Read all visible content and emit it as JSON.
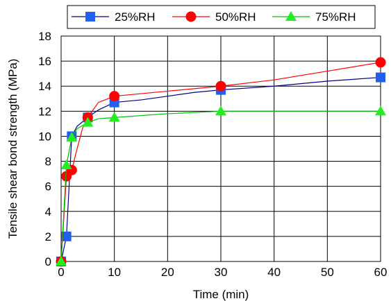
{
  "chart_data": {
    "type": "line",
    "xlabel": "Time (min)",
    "ylabel": "Tensile shear bond strength (MPa)",
    "xlim": [
      0,
      60
    ],
    "ylim": [
      0,
      18
    ],
    "xticks": [
      "0",
      "10",
      "20",
      "30",
      "40",
      "50",
      "60"
    ],
    "yticks": [
      "0",
      "2",
      "4",
      "6",
      "8",
      "10",
      "12",
      "14",
      "16",
      "18"
    ],
    "grid": true,
    "legend_position": "top",
    "series": [
      {
        "name": "25%RH",
        "color": "#00008b",
        "marker_color": "#2060f0",
        "marker": "square",
        "x": [
          0,
          1,
          2,
          5,
          10,
          30,
          60
        ],
        "y": [
          0,
          2.0,
          10.0,
          11.5,
          12.7,
          13.7,
          14.7
        ],
        "curve": [
          [
            0,
            0
          ],
          [
            1,
            2.0
          ],
          [
            2,
            10.0
          ],
          [
            3,
            10.8
          ],
          [
            5,
            11.5
          ],
          [
            7,
            12.1
          ],
          [
            10,
            12.7
          ],
          [
            15,
            12.9
          ],
          [
            20,
            13.2
          ],
          [
            25,
            13.5
          ],
          [
            30,
            13.7
          ],
          [
            40,
            14.0
          ],
          [
            50,
            14.4
          ],
          [
            60,
            14.7
          ]
        ]
      },
      {
        "name": "50%RH",
        "color": "#ff0000",
        "marker_color": "#ff0000",
        "marker": "circle",
        "x": [
          0,
          1,
          2,
          5,
          10,
          30,
          60
        ],
        "y": [
          0,
          6.8,
          7.3,
          11.5,
          13.2,
          14.0,
          15.9
        ],
        "curve": [
          [
            0,
            0
          ],
          [
            1,
            6.8
          ],
          [
            2,
            7.3
          ],
          [
            3,
            9.0
          ],
          [
            4,
            10.6
          ],
          [
            5,
            11.5
          ],
          [
            7,
            12.7
          ],
          [
            10,
            13.2
          ],
          [
            15,
            13.4
          ],
          [
            20,
            13.6
          ],
          [
            30,
            14.0
          ],
          [
            40,
            14.5
          ],
          [
            50,
            15.2
          ],
          [
            60,
            15.9
          ]
        ]
      },
      {
        "name": "75%RH",
        "color": "#00bf00",
        "marker_color": "#22ee22",
        "marker": "triangle",
        "x": [
          0,
          1,
          2,
          5,
          10,
          30,
          60
        ],
        "y": [
          0,
          7.7,
          9.9,
          11.1,
          11.5,
          12.0,
          12.0
        ],
        "curve": [
          [
            0,
            0
          ],
          [
            1,
            7.7
          ],
          [
            2,
            9.9
          ],
          [
            3,
            10.6
          ],
          [
            5,
            11.1
          ],
          [
            7,
            11.4
          ],
          [
            10,
            11.5
          ],
          [
            20,
            11.8
          ],
          [
            30,
            12.0
          ],
          [
            45,
            12.0
          ],
          [
            60,
            12.0
          ]
        ]
      }
    ]
  }
}
